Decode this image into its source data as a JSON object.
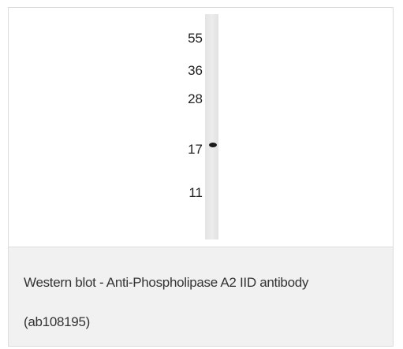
{
  "figure": {
    "markers": [
      55,
      36,
      28,
      17,
      11
    ],
    "caption": "Western blot - Anti-Phospholipase A2 IID antibody (ab108195)"
  }
}
